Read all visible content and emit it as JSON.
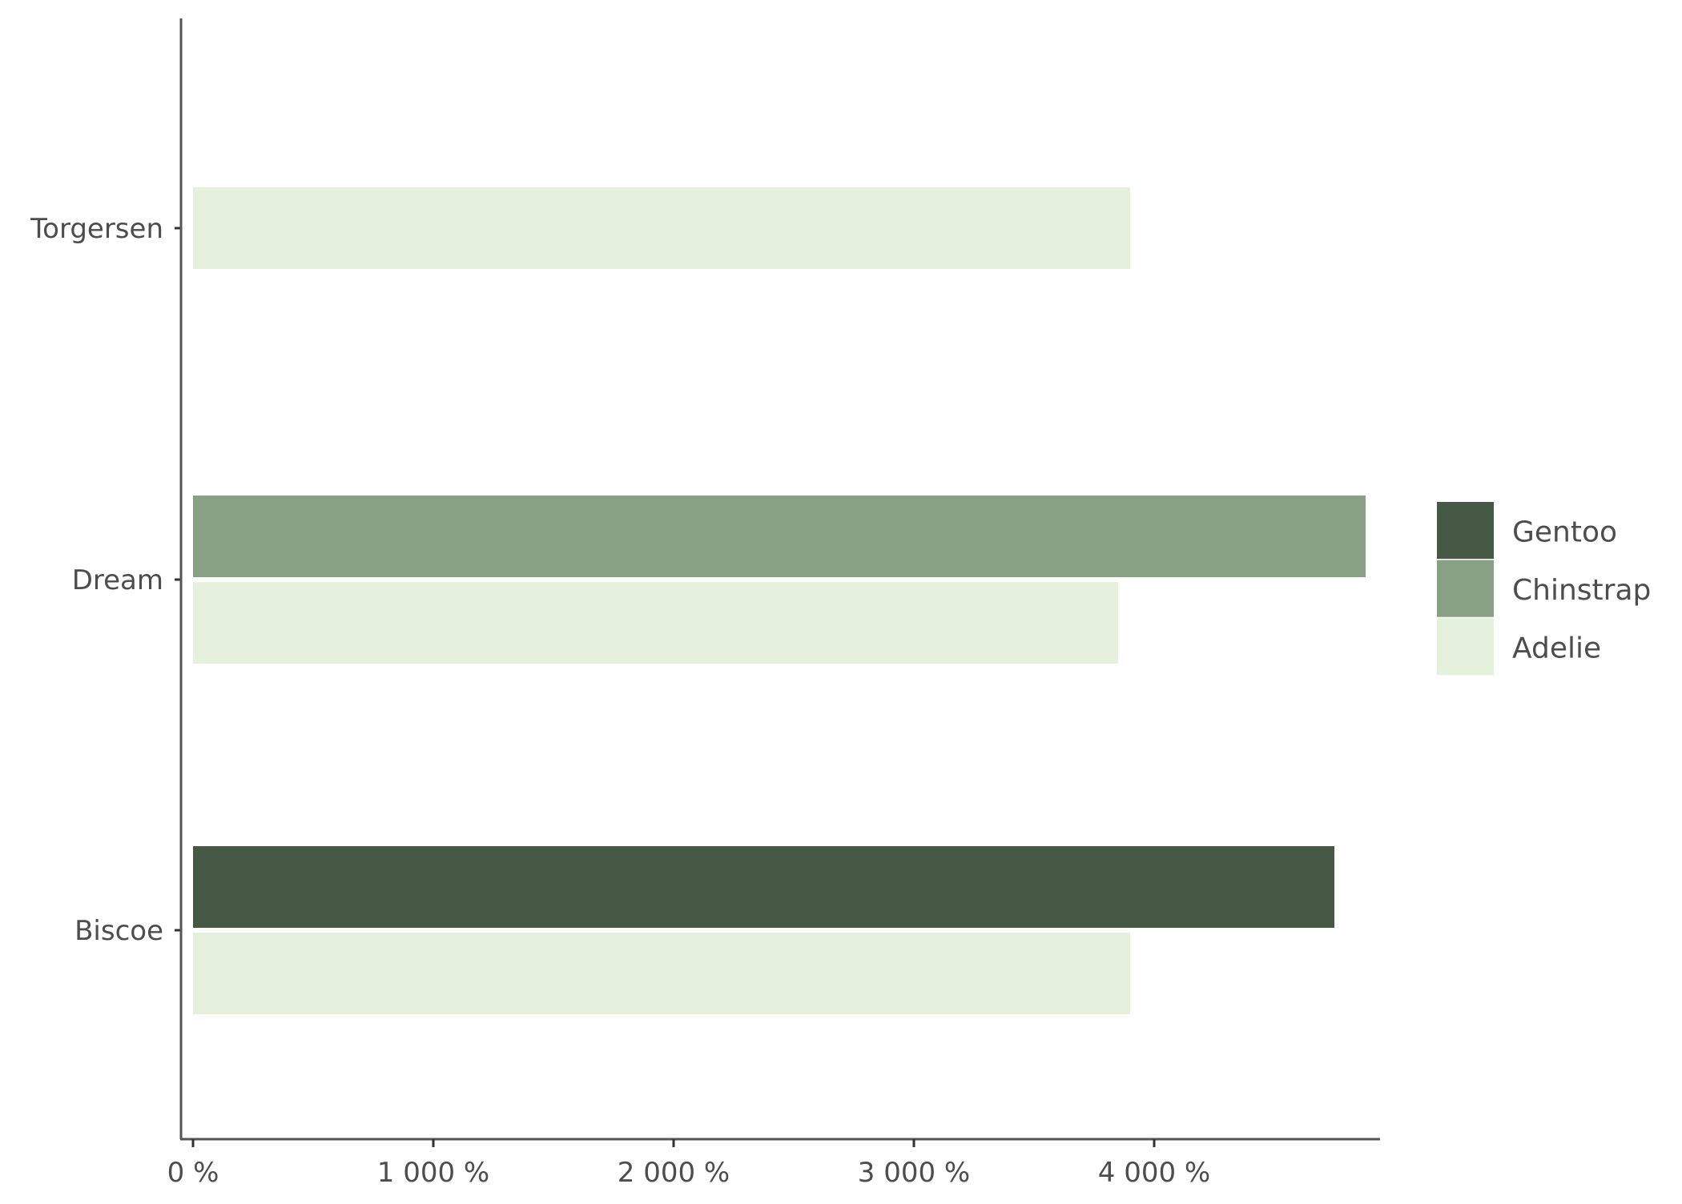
{
  "chart_data": {
    "type": "bar",
    "orientation": "horizontal",
    "title": "",
    "xlabel": "",
    "ylabel": "",
    "categories": [
      "Torgersen",
      "Dream",
      "Biscoe"
    ],
    "series": [
      {
        "name": "Gentoo",
        "color": "#465945",
        "values": [
          null,
          null,
          4750
        ]
      },
      {
        "name": "Chinstrap",
        "color": "#8AA086",
        "values": [
          null,
          4880,
          null
        ]
      },
      {
        "name": "Adelie",
        "color": "#E5F1DC",
        "values": [
          3900,
          3850,
          3900
        ]
      }
    ],
    "xticks": [
      0,
      1000,
      2000,
      3000,
      4000
    ],
    "xtick_labels": [
      "0 %",
      "1 000 %",
      "2 000 %",
      "3 000 %",
      "4 000 %"
    ],
    "xlim": [
      -50,
      4940
    ],
    "grid": false,
    "legend": {
      "placement": "right",
      "entries": [
        "Gentoo",
        "Chinstrap",
        "Adelie"
      ]
    }
  }
}
